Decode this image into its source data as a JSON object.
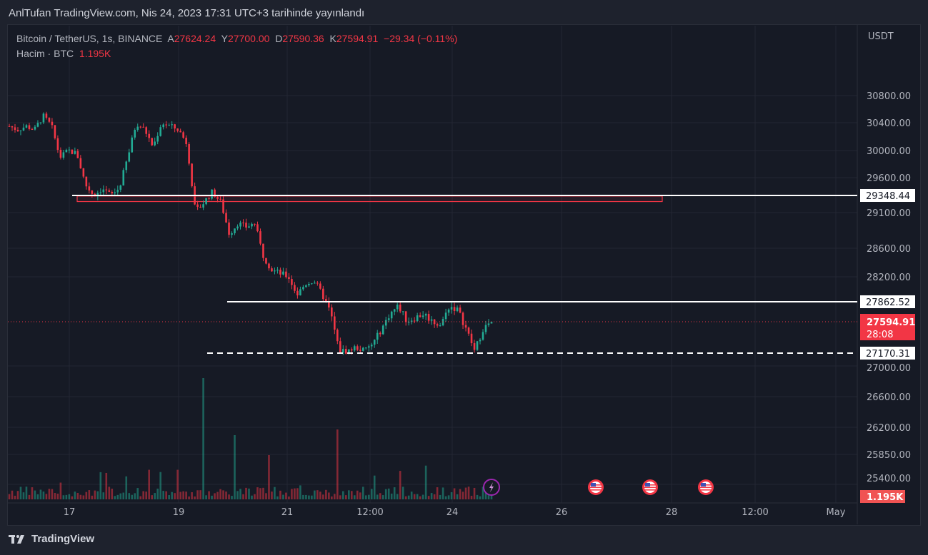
{
  "publish_line": "AnlTufan TradingView.com, Nis 24, 2023 17:31 UTC+3 tarihinde yayınlandı",
  "legend": {
    "symbol": "Bitcoin / TetherUS, 1s, BINANCE",
    "open_label": "A",
    "open": "27624.24",
    "high_label": "Y",
    "high": "27700.00",
    "low_label": "D",
    "low": "27590.36",
    "close_label": "K",
    "close": "27594.91",
    "change": "−29.34 (−0.11%)",
    "volume_label": "Hacim · BTC",
    "volume": "1.195K"
  },
  "footer": {
    "brand": "TradingView"
  },
  "colors": {
    "up": "#22ab94",
    "down": "#f23645",
    "bg": "#161a25",
    "grid": "#232632"
  },
  "chart_data": {
    "type": "candlestick",
    "currency": "USDT",
    "price_ticks": [
      "30800.00",
      "30400.00",
      "30000.00",
      "29600.00",
      "29100.00",
      "28600.00",
      "28200.00",
      "27000.00",
      "26600.00",
      "26200.00",
      "25850.00",
      "25400.00"
    ],
    "time_ticks": [
      "17",
      "19",
      "21",
      "12:00",
      "24",
      "26",
      "28",
      "12:00",
      "May"
    ],
    "closes": [
      30350,
      30300,
      30350,
      30300,
      30500,
      30350,
      29900,
      30000,
      29950,
      29500,
      29350,
      29450,
      29350,
      29450,
      29900,
      30400,
      30300,
      30050,
      30400,
      30350,
      30300,
      30100,
      29100,
      29250,
      29400,
      29250,
      28800,
      28950,
      28900,
      28950,
      28500,
      28300,
      28250,
      28200,
      27950,
      28100,
      28150,
      27950,
      27700,
      27200,
      27200,
      27250,
      27200,
      27300,
      27500,
      27700,
      27800,
      27600,
      27650,
      27700,
      27600,
      27550,
      27800,
      27750,
      27500,
      27200,
      27500,
      27594.91
    ],
    "horizontal_levels": [
      {
        "label": "29348.44",
        "style": "solid"
      },
      {
        "label": "27862.52",
        "style": "solid"
      },
      {
        "label": "27170.31",
        "style": "dashed"
      }
    ],
    "zone": {
      "from": 29260,
      "to": 29340,
      "color": "#f23645"
    },
    "last_price": {
      "label": "27594.91",
      "countdown": "28:08"
    },
    "last_volume": "1.195K",
    "events": [
      "lightning-icon",
      "us-flag-icon",
      "us-flag-icon",
      "us-flag-icon"
    ]
  }
}
